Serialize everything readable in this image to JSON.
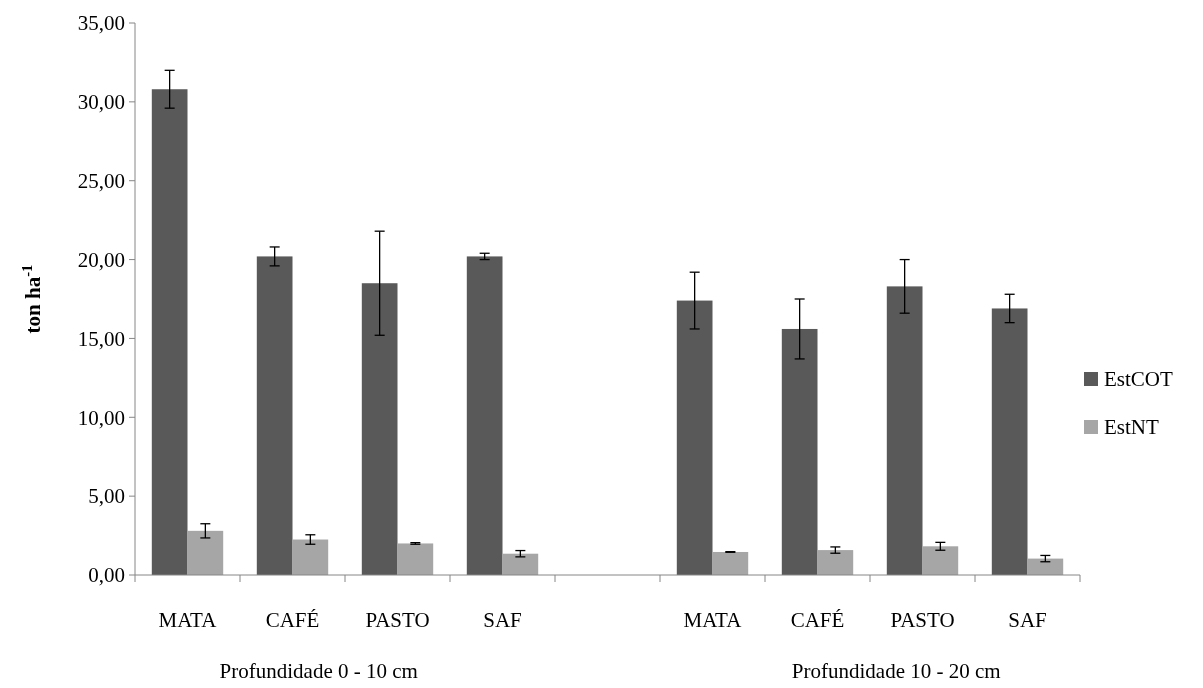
{
  "chart_data": {
    "type": "bar",
    "ylabel": "ton ha$^{-1}$",
    "categories": [
      "MATA",
      "CAFÉ",
      "PASTO",
      "SAF",
      null,
      "MATA",
      "CAFÉ",
      "PASTO",
      "SAF"
    ],
    "series": [
      {
        "name": "EstCOT",
        "color": "#595959",
        "values": [
          30.8,
          20.2,
          18.5,
          20.2,
          null,
          17.4,
          15.6,
          18.3,
          16.9
        ],
        "errors": [
          1.2,
          0.6,
          3.3,
          0.2,
          null,
          1.8,
          1.9,
          1.7,
          0.9
        ]
      },
      {
        "name": "EstNT",
        "color": "#a6a6a6",
        "values": [
          2.8,
          2.25,
          2.0,
          1.35,
          null,
          1.46,
          1.58,
          1.82,
          1.04
        ],
        "errors": [
          0.45,
          0.3,
          0.05,
          0.2,
          null,
          0.02,
          0.2,
          0.25,
          0.2
        ]
      }
    ],
    "ylim": [
      0,
      35
    ],
    "yticks": [
      {
        "value": 0,
        "label": "0,00"
      },
      {
        "value": 5,
        "label": "5,00"
      },
      {
        "value": 10,
        "label": "10,00"
      },
      {
        "value": 15,
        "label": "15,00"
      },
      {
        "value": 20,
        "label": "20,00"
      },
      {
        "value": 25,
        "label": "25,00"
      },
      {
        "value": 30,
        "label": "30,00"
      },
      {
        "value": 35,
        "label": "35,00"
      }
    ],
    "annotations": [
      "Profundidade 0 - 10 cm",
      "Profundidade 10 - 20 cm"
    ],
    "legend": "right",
    "grid": false
  }
}
